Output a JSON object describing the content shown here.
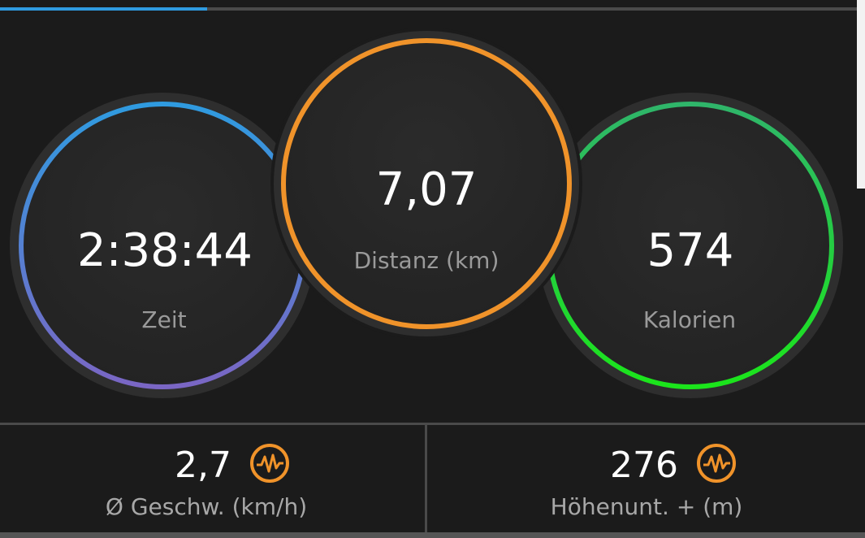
{
  "summary_circles": [
    {
      "value": "2:38:44",
      "label": "Zeit"
    },
    {
      "value": "7,07",
      "label": "Distanz (km)"
    },
    {
      "value": "574",
      "label": "Kalorien"
    }
  ],
  "stats": [
    {
      "value": "2,7",
      "label": "Ø Geschw. (km/h)"
    },
    {
      "value": "276",
      "label": "Höhenunt. + (m)"
    }
  ]
}
